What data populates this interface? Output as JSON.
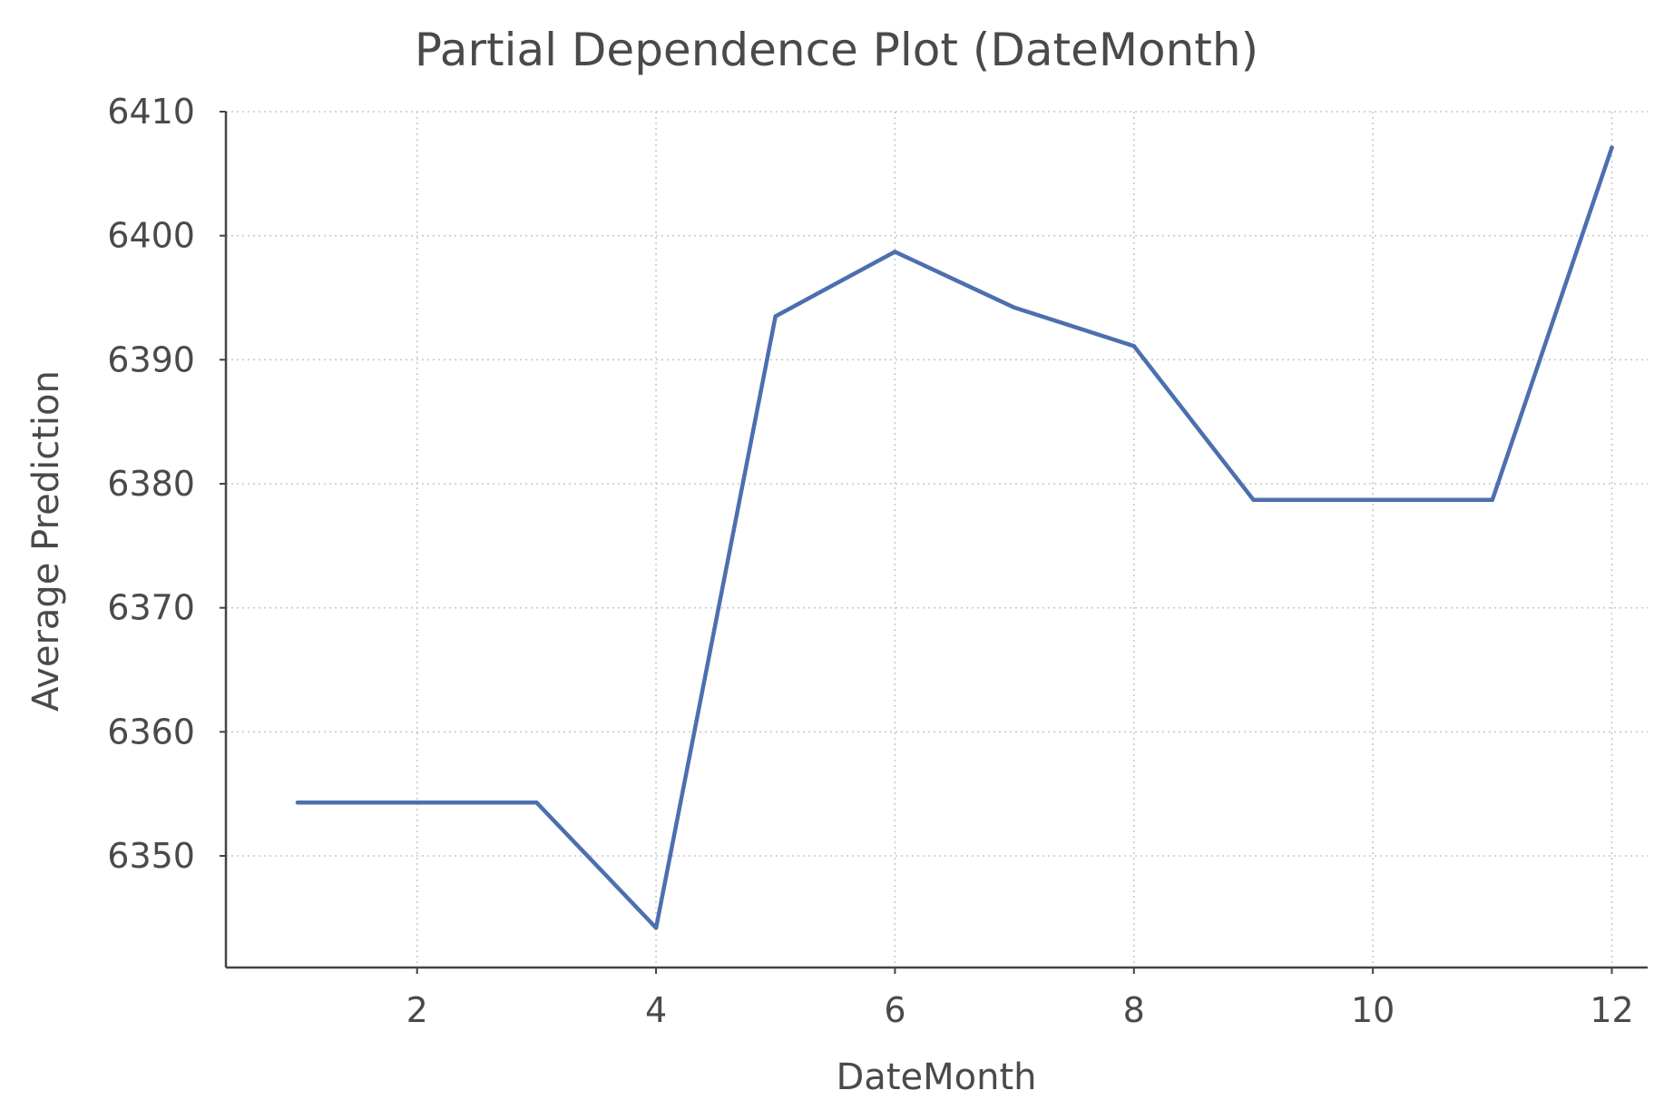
{
  "chart_data": {
    "type": "line",
    "title": "Partial Dependence Plot (DateMonth)",
    "xlabel": "DateMonth",
    "ylabel": "Average Prediction",
    "xlim": [
      0.4,
      12.3
    ],
    "ylim": [
      6341,
      6410
    ],
    "xticks": [
      2,
      4,
      6,
      8,
      10,
      12
    ],
    "yticks": [
      6350,
      6360,
      6370,
      6380,
      6390,
      6400,
      6410
    ],
    "grid": true,
    "series": [
      {
        "color": "#4c6faf",
        "x": [
          1,
          2,
          3,
          4,
          5,
          6,
          7,
          8,
          9,
          10,
          11,
          12
        ],
        "y": [
          6354.3,
          6354.3,
          6354.3,
          6344.2,
          6393.5,
          6398.7,
          6394.2,
          6391.1,
          6378.7,
          6378.7,
          6378.7,
          6407.1
        ]
      }
    ]
  }
}
